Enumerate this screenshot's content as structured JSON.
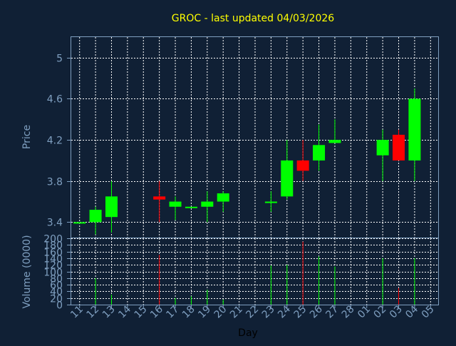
{
  "chart_data": [
    {
      "type": "candlestick",
      "title": "GROC - last updated 04/03/2026",
      "ylabel": "Price",
      "ylim": [
        3.25,
        5.2
      ],
      "yticks": [
        3.4,
        3.8,
        4.2,
        4.6,
        5
      ],
      "ytick_labels": [
        "3.4",
        "3.8",
        "4.2",
        "4.6",
        "5"
      ],
      "grid": true,
      "up_color": "#00ff00",
      "down_color": "#ff0000",
      "candles": [
        {
          "date": "11",
          "open": 3.4,
          "high": 3.4,
          "low": 3.4,
          "close": 3.4
        },
        {
          "date": "12",
          "open": 3.4,
          "high": 3.55,
          "low": 3.28,
          "close": 3.52
        },
        {
          "date": "13",
          "open": 3.45,
          "high": 3.8,
          "low": 3.3,
          "close": 3.65
        },
        {
          "date": "16",
          "open": 3.65,
          "high": 3.8,
          "low": 3.4,
          "close": 3.62
        },
        {
          "date": "17",
          "open": 3.55,
          "high": 3.65,
          "low": 3.42,
          "close": 3.6
        },
        {
          "date": "18",
          "open": 3.55,
          "high": 3.55,
          "low": 3.55,
          "close": 3.55
        },
        {
          "date": "19",
          "open": 3.55,
          "high": 3.7,
          "low": 3.4,
          "close": 3.6
        },
        {
          "date": "20",
          "open": 3.6,
          "high": 3.7,
          "low": 3.5,
          "close": 3.68
        },
        {
          "date": "23",
          "open": 3.6,
          "high": 3.7,
          "low": 3.5,
          "close": 3.6
        },
        {
          "date": "24",
          "open": 3.65,
          "high": 4.2,
          "low": 3.62,
          "close": 4.0
        },
        {
          "date": "25",
          "open": 4.0,
          "high": 4.2,
          "low": 3.8,
          "close": 3.9
        },
        {
          "date": "26",
          "open": 4.0,
          "high": 4.35,
          "low": 3.9,
          "close": 4.15
        },
        {
          "date": "27",
          "open": 4.17,
          "high": 4.4,
          "low": 4.17,
          "close": 4.2
        },
        {
          "date": "02",
          "open": 4.05,
          "high": 4.3,
          "low": 3.8,
          "close": 4.2
        },
        {
          "date": "03",
          "open": 4.25,
          "high": 4.3,
          "low": 4.0,
          "close": 4.0
        },
        {
          "date": "04",
          "open": 4.0,
          "high": 4.7,
          "low": 3.8,
          "close": 4.6
        }
      ]
    },
    {
      "type": "bar",
      "ylabel": "Volume (0000)",
      "xlabel": "Day",
      "ylim": [
        0,
        200
      ],
      "yticks": [
        0,
        20,
        40,
        60,
        80,
        100,
        120,
        140,
        160,
        180,
        200
      ],
      "ytick_labels": [
        "0",
        "20",
        "40",
        "60",
        "80",
        "100",
        "120",
        "140",
        "160",
        "180",
        "200"
      ],
      "grid": true,
      "categories": [
        "11",
        "12",
        "13",
        "14",
        "15",
        "16",
        "17",
        "18",
        "19",
        "20",
        "21",
        "22",
        "23",
        "24",
        "25",
        "26",
        "27",
        "28",
        "01",
        "02",
        "03",
        "04",
        "05"
      ],
      "values": [
        0,
        80,
        30,
        0,
        0,
        150,
        20,
        25,
        45,
        15,
        0,
        0,
        118,
        120,
        190,
        145,
        115,
        0,
        0,
        140,
        50,
        140,
        0
      ],
      "colors": [
        "#00ff00",
        "#00ff00",
        "#00ff00",
        "#00ff00",
        "#00ff00",
        "#ff0000",
        "#00ff00",
        "#00ff00",
        "#00ff00",
        "#00ff00",
        "#00ff00",
        "#00ff00",
        "#00ff00",
        "#00ff00",
        "#ff0000",
        "#00ff00",
        "#00ff00",
        "#00ff00",
        "#00ff00",
        "#00ff00",
        "#ff0000",
        "#00ff00",
        "#00ff00"
      ]
    }
  ]
}
